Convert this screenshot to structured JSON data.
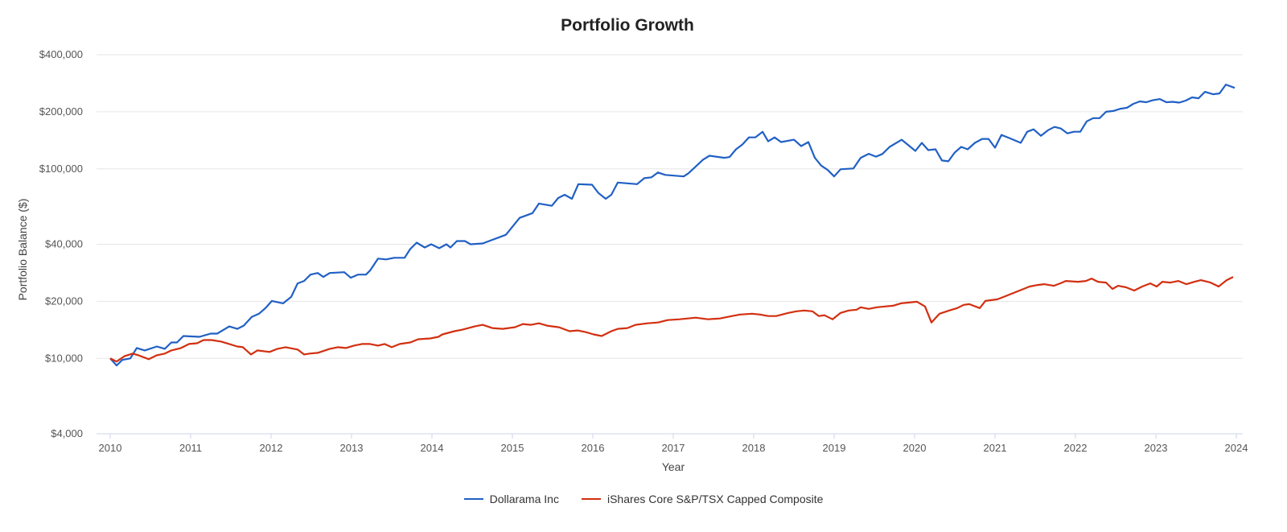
{
  "chart_data": {
    "type": "line",
    "title": "Portfolio Growth",
    "xlabel": "Year",
    "ylabel": "Portfolio Balance ($)",
    "y_scale": "log",
    "ylim": [
      4000,
      400000
    ],
    "xlim": [
      2010,
      2024
    ],
    "y_ticks": [
      4000,
      10000,
      20000,
      40000,
      100000,
      200000,
      400000
    ],
    "y_tick_labels": [
      "$4,000",
      "$10,000",
      "$20,000",
      "$40,000",
      "$100,000",
      "$200,000",
      "$400,000"
    ],
    "x_ticks": [
      "2010",
      "2011",
      "2012",
      "2013",
      "2014",
      "2015",
      "2016",
      "2017",
      "2018",
      "2019",
      "2020",
      "2021",
      "2022",
      "2023",
      "2024"
    ],
    "grid": "horizontal",
    "legend_position": "bottom",
    "series": [
      {
        "name": "Dollarama Inc",
        "color": "#2160c4",
        "x": [
          2010.0,
          2010.08,
          2010.15,
          2010.25,
          2010.33,
          2010.43,
          2010.58,
          2010.68,
          2010.76,
          2010.83,
          2010.91,
          2011.11,
          2011.25,
          2011.33,
          2011.48,
          2011.58,
          2011.66,
          2011.76,
          2011.85,
          2011.93,
          2012.01,
          2012.15,
          2012.25,
          2012.33,
          2012.41,
          2012.49,
          2012.58,
          2012.65,
          2012.73,
          2012.91,
          2012.99,
          2013.08,
          2013.18,
          2013.23,
          2013.33,
          2013.43,
          2013.53,
          2013.66,
          2013.73,
          2013.81,
          2013.91,
          2013.99,
          2014.09,
          2014.18,
          2014.23,
          2014.31,
          2014.41,
          2014.48,
          2014.63,
          2014.92,
          2015.09,
          2015.25,
          2015.33,
          2015.49,
          2015.57,
          2015.65,
          2015.74,
          2015.82,
          2015.99,
          2016.07,
          2016.16,
          2016.23,
          2016.31,
          2016.55,
          2016.64,
          2016.73,
          2016.81,
          2016.9,
          2017.13,
          2017.19,
          2017.37,
          2017.45,
          2017.64,
          2017.7,
          2017.78,
          2017.86,
          2017.94,
          2018.02,
          2018.11,
          2018.18,
          2018.26,
          2018.34,
          2018.5,
          2018.59,
          2018.68,
          2018.76,
          2018.84,
          2018.92,
          2019.0,
          2019.08,
          2019.24,
          2019.33,
          2019.43,
          2019.52,
          2019.6,
          2019.69,
          2019.84,
          2020.01,
          2020.09,
          2020.17,
          2020.26,
          2020.34,
          2020.42,
          2020.5,
          2020.58,
          2020.66,
          2020.75,
          2020.84,
          2020.92,
          2021.0,
          2021.08,
          2021.18,
          2021.32,
          2021.4,
          2021.48,
          2021.57,
          2021.66,
          2021.74,
          2021.82,
          2021.9,
          2021.98,
          2022.06,
          2022.14,
          2022.22,
          2022.3,
          2022.38,
          2022.47,
          2022.56,
          2022.64,
          2022.72,
          2022.8,
          2022.88,
          2022.96,
          2023.05,
          2023.13,
          2023.21,
          2023.29,
          2023.37,
          2023.45,
          2023.53,
          2023.61,
          2023.71,
          2023.79,
          2023.87,
          2023.98
        ],
        "values": [
          10000,
          9170,
          9810,
          10000,
          11340,
          11020,
          11560,
          11230,
          12140,
          12140,
          13120,
          12990,
          13510,
          13510,
          14740,
          14310,
          14880,
          16560,
          17210,
          18420,
          20100,
          19520,
          21100,
          24880,
          25610,
          27680,
          28220,
          26890,
          28220,
          28490,
          26630,
          27680,
          27680,
          29060,
          33600,
          33280,
          33930,
          33930,
          37750,
          40780,
          38480,
          40000,
          38120,
          40000,
          38480,
          41580,
          41580,
          40000,
          40390,
          44900,
          55100,
          58400,
          65600,
          63800,
          70200,
          73000,
          69500,
          83000,
          82500,
          74600,
          69500,
          73000,
          84700,
          83000,
          89300,
          90200,
          95700,
          92900,
          91200,
          94800,
          111800,
          117300,
          114300,
          115400,
          126800,
          134400,
          146600,
          146600,
          156900,
          139700,
          146600,
          138400,
          142500,
          131800,
          138400,
          114300,
          104000,
          98600,
          91200,
          99500,
          100500,
          114300,
          120000,
          116000,
          119800,
          130600,
          142500,
          124400,
          137100,
          125600,
          126800,
          110700,
          109650,
          122000,
          130600,
          126800,
          137100,
          143900,
          143900,
          129300,
          151000,
          145300,
          137100,
          156900,
          161600,
          149500,
          160100,
          166400,
          163200,
          153900,
          156900,
          156900,
          178000,
          185100,
          185100,
          200000,
          202000,
          207500,
          210000,
          220400,
          226900,
          224700,
          230000,
          233500,
          224700,
          225800,
          223600,
          229100,
          238200,
          235800,
          254800,
          247500,
          250000,
          278200,
          267500
        ]
      },
      {
        "name": "iShares Core S&P/TSX Capped Composite",
        "color": "#d22f10",
        "x": [
          2010.0,
          2010.08,
          2010.18,
          2010.28,
          2010.35,
          2010.48,
          2010.58,
          2010.68,
          2010.76,
          2010.88,
          2010.98,
          2011.08,
          2011.16,
          2011.26,
          2011.38,
          2011.48,
          2011.58,
          2011.65,
          2011.75,
          2011.83,
          2011.98,
          2012.08,
          2012.18,
          2012.33,
          2012.41,
          2012.48,
          2012.58,
          2012.73,
          2012.83,
          2012.93,
          2013.03,
          2013.13,
          2013.23,
          2013.33,
          2013.41,
          2013.5,
          2013.6,
          2013.73,
          2013.83,
          2013.98,
          2014.08,
          2014.13,
          2014.28,
          2014.38,
          2014.53,
          2014.63,
          2014.75,
          2014.88,
          2015.03,
          2015.13,
          2015.23,
          2015.33,
          2015.43,
          2015.58,
          2015.71,
          2015.81,
          2015.91,
          2016.01,
          2016.11,
          2016.23,
          2016.31,
          2016.43,
          2016.53,
          2016.68,
          2016.81,
          2016.93,
          2017.08,
          2017.28,
          2017.43,
          2017.58,
          2017.73,
          2017.83,
          2017.98,
          2018.08,
          2018.18,
          2018.28,
          2018.43,
          2018.53,
          2018.63,
          2018.73,
          2018.81,
          2018.88,
          2018.98,
          2019.08,
          2019.18,
          2019.28,
          2019.33,
          2019.43,
          2019.53,
          2019.63,
          2019.73,
          2019.83,
          2019.93,
          2020.03,
          2020.13,
          2020.21,
          2020.31,
          2020.43,
          2020.53,
          2020.61,
          2020.68,
          2020.81,
          2020.88,
          2021.03,
          2021.13,
          2021.23,
          2021.33,
          2021.43,
          2021.53,
          2021.61,
          2021.73,
          2021.81,
          2021.88,
          2022.03,
          2022.13,
          2022.2,
          2022.28,
          2022.38,
          2022.46,
          2022.53,
          2022.63,
          2022.73,
          2022.83,
          2022.93,
          2023.01,
          2023.08,
          2023.18,
          2023.28,
          2023.38,
          2023.48,
          2023.56,
          2023.68,
          2023.78,
          2023.88,
          2023.96
        ],
        "values": [
          10000,
          9620,
          10290,
          10600,
          10390,
          9900,
          10390,
          10600,
          11020,
          11340,
          11910,
          12020,
          12500,
          12500,
          12260,
          11910,
          11560,
          11450,
          10490,
          11020,
          10810,
          11230,
          11450,
          11130,
          10490,
          10600,
          10700,
          11230,
          11450,
          11340,
          11680,
          11910,
          11910,
          11680,
          11910,
          11450,
          11910,
          12140,
          12620,
          12740,
          12990,
          13380,
          13910,
          14180,
          14740,
          15030,
          14450,
          14310,
          14600,
          15180,
          15030,
          15320,
          14880,
          14600,
          13910,
          14040,
          13770,
          13380,
          13120,
          13910,
          14310,
          14450,
          15030,
          15320,
          15470,
          15930,
          16080,
          16400,
          16080,
          16240,
          16720,
          17040,
          17210,
          17040,
          16720,
          16720,
          17380,
          17720,
          17890,
          17720,
          16720,
          16880,
          16080,
          17380,
          17890,
          18060,
          18600,
          18240,
          18600,
          18780,
          18960,
          19520,
          19710,
          19900,
          18780,
          15470,
          17210,
          17890,
          18420,
          19150,
          19330,
          18420,
          20100,
          20490,
          21300,
          22140,
          23020,
          23930,
          24400,
          24640,
          24160,
          24880,
          25610,
          25360,
          25610,
          26370,
          25360,
          25120,
          23240,
          24160,
          23700,
          22800,
          23930,
          24880,
          23930,
          25360,
          25120,
          25610,
          24640,
          25360,
          25860,
          25120,
          23930,
          25860,
          26890
        ]
      }
    ]
  }
}
